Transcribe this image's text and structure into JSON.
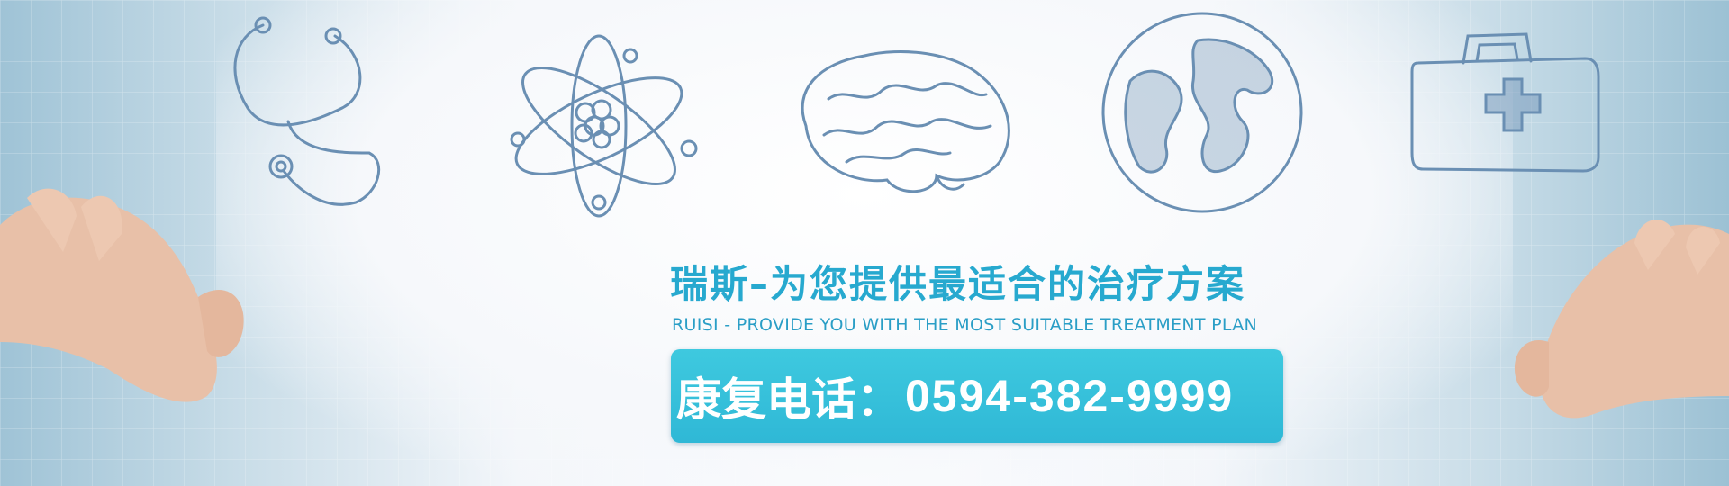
{
  "headline": {
    "cn": "瑞斯–为您提供最适合的治疗方案",
    "en": "RUISI - PROVIDE YOU WITH THE MOST SUITABLE TREATMENT PLAN"
  },
  "contact": {
    "label": "康复电话：",
    "phone": "0594-382-9999"
  },
  "colors": {
    "accent": "#27a9cf",
    "box": "#34bdd8",
    "sketch": "#6a8fb3"
  }
}
